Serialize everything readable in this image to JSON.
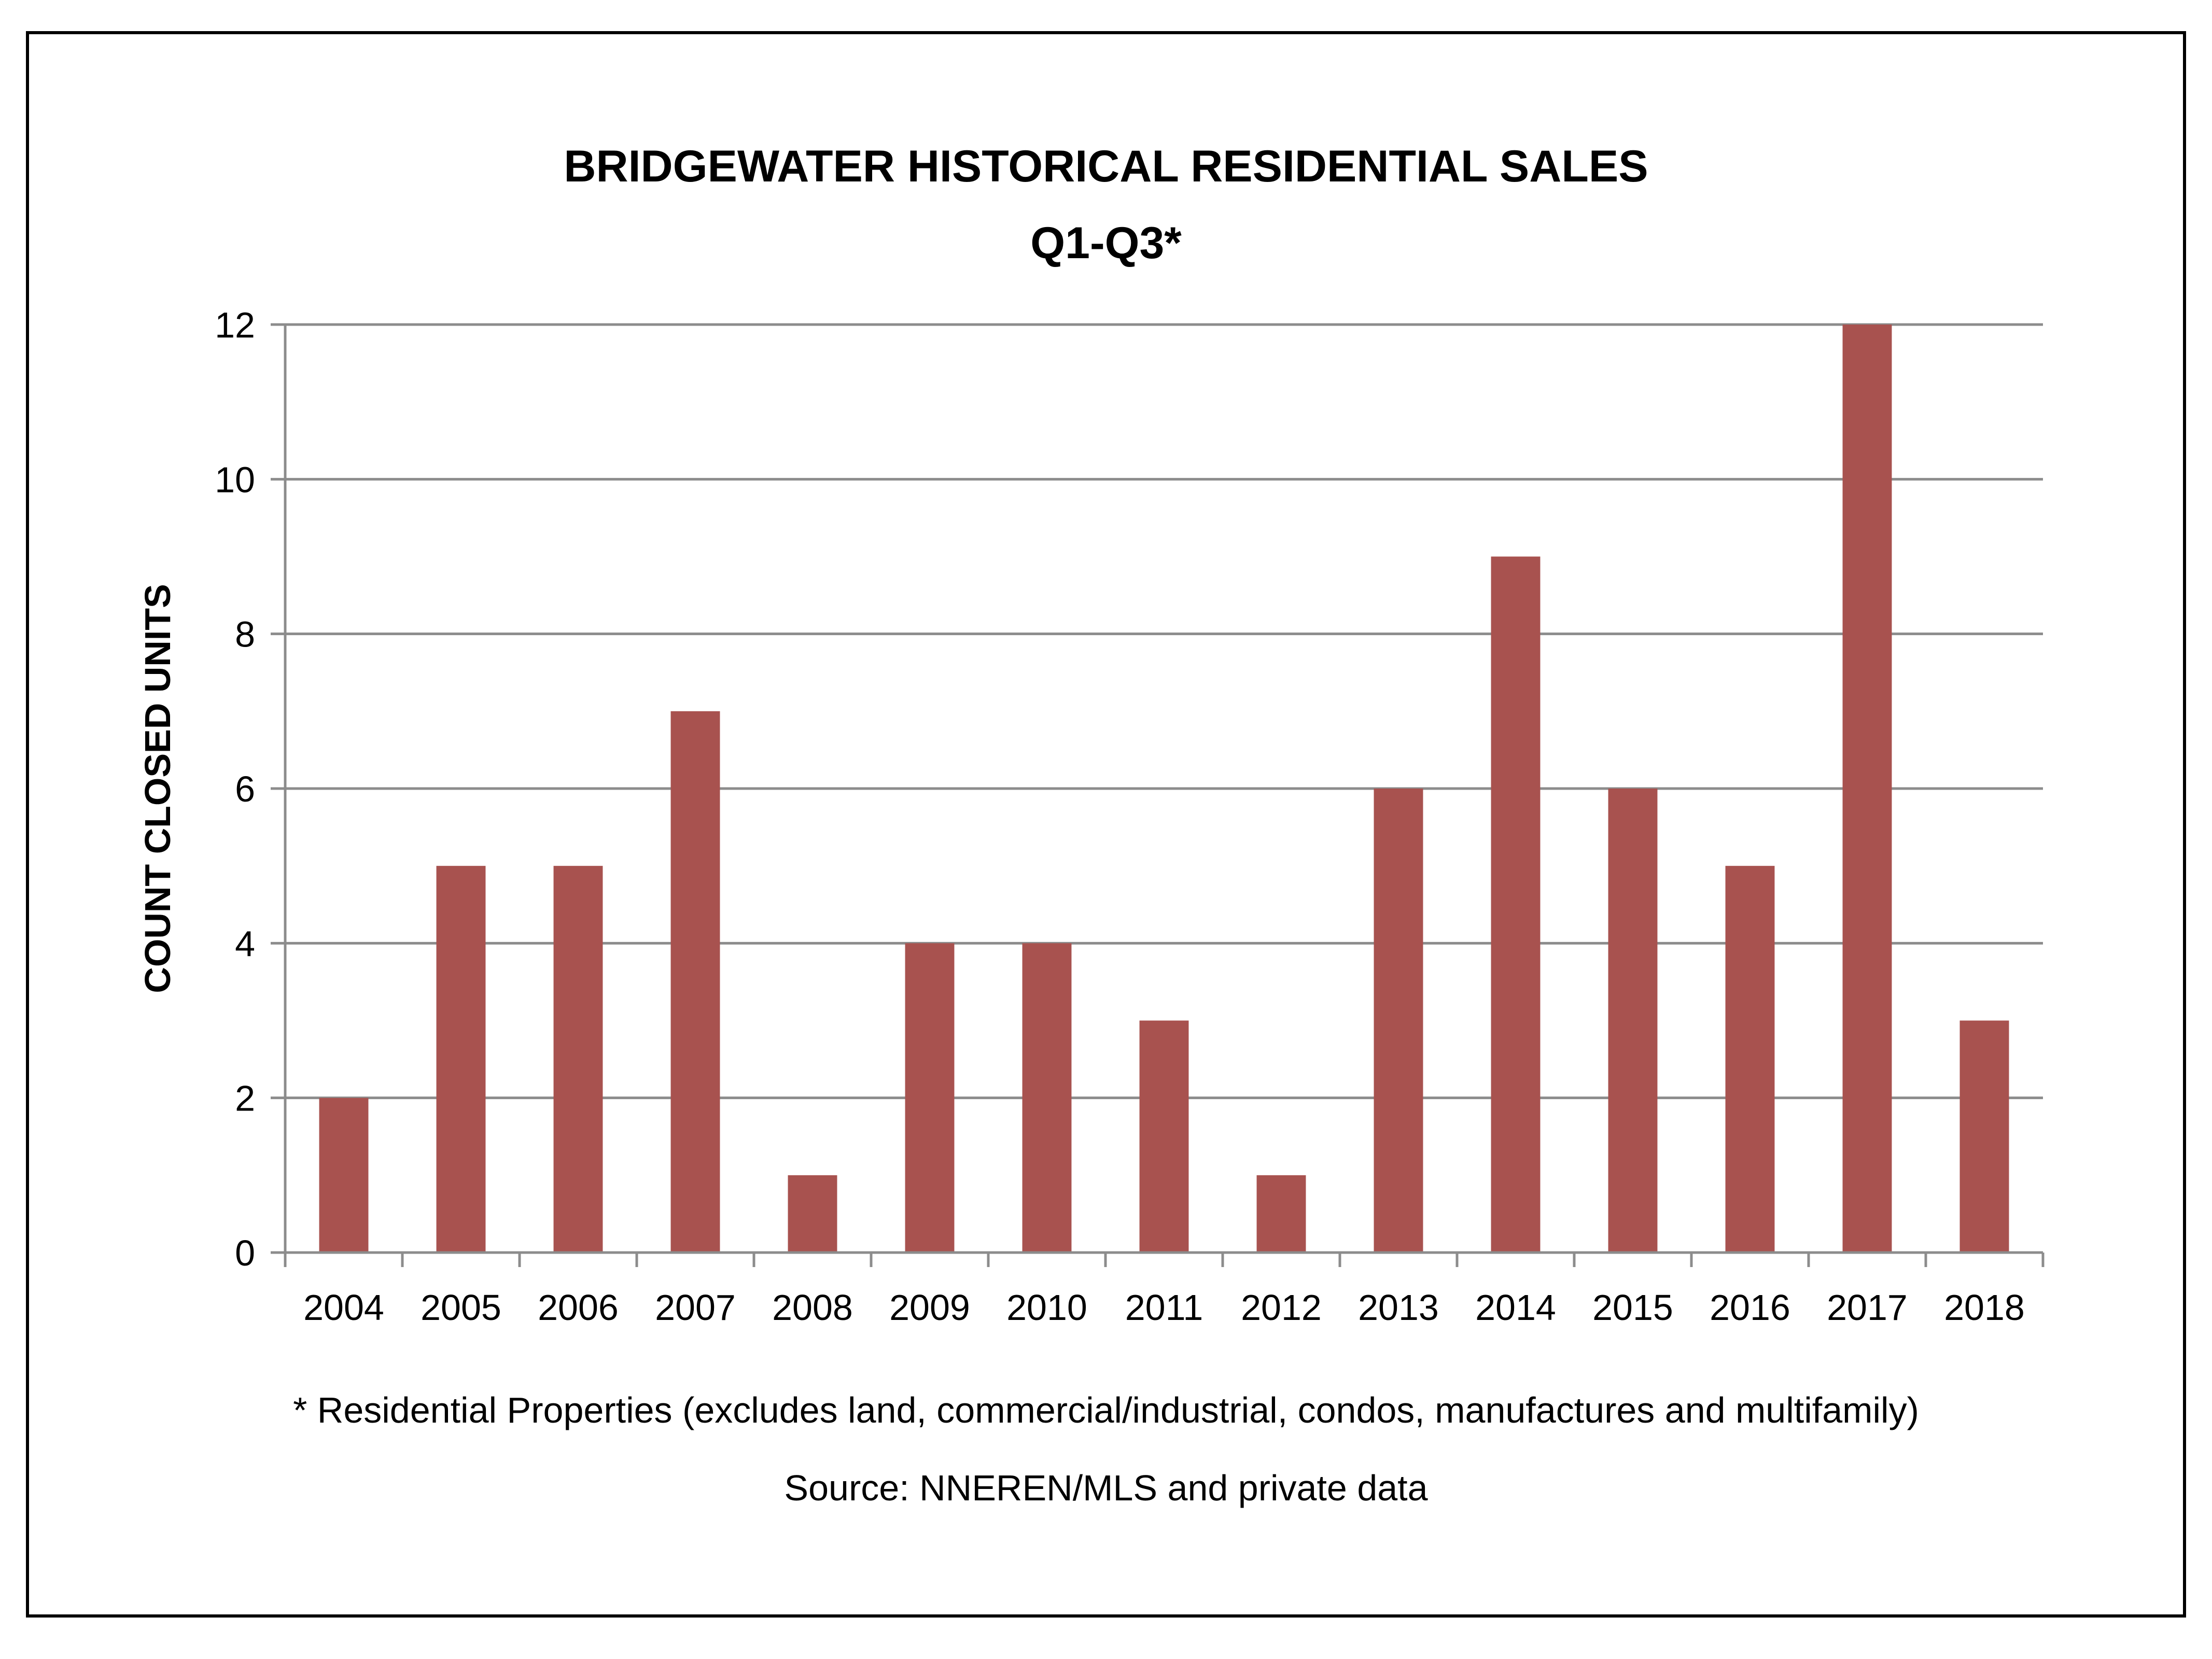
{
  "chart_data": {
    "type": "bar",
    "title": "BRIDGEWATER HISTORICAL RESIDENTIAL SALES",
    "subtitle": "Q1-Q3*",
    "xlabel": "",
    "ylabel": "COUNT CLOSED UNITS",
    "categories": [
      "2004",
      "2005",
      "2006",
      "2007",
      "2008",
      "2009",
      "2010",
      "2011",
      "2012",
      "2013",
      "2014",
      "2015",
      "2016",
      "2017",
      "2018"
    ],
    "values": [
      2,
      5,
      5,
      7,
      1,
      4,
      4,
      3,
      1,
      6,
      9,
      6,
      5,
      12,
      3
    ],
    "ylim": [
      0,
      12
    ],
    "yticks": [
      0,
      2,
      4,
      6,
      8,
      10,
      12
    ],
    "grid": true,
    "legend": "none",
    "bar_color": "#A8524F",
    "grid_color": "#8C8C8C"
  },
  "footnote": "* Residential Properties (excludes land, commercial/industrial, condos, manufactures and multifamily)",
  "source": "Source: NNEREN/MLS and private data"
}
